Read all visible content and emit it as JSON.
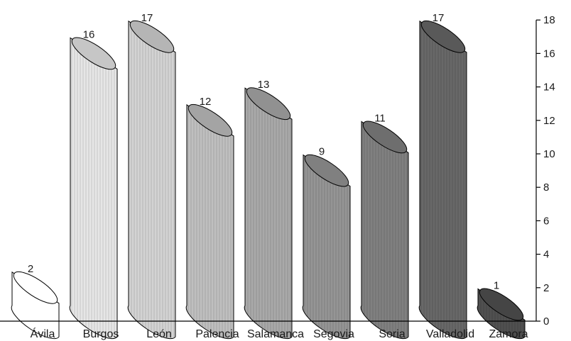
{
  "chart_data": {
    "type": "bar",
    "style": "3d-cylinder",
    "categories": [
      "Ávila",
      "Burgos",
      "León",
      "Palencia",
      "Salamanca",
      "Segovia",
      "Soria",
      "Valladolid",
      "Zamora"
    ],
    "values": [
      2,
      16,
      17,
      12,
      13,
      9,
      11,
      17,
      1
    ],
    "colors": [
      "#ffffff",
      "#e6e6e6",
      "#d3d3d3",
      "#bfbfbf",
      "#a9a9a9",
      "#959595",
      "#808080",
      "#686868",
      "#505050"
    ],
    "ylim": [
      0,
      18
    ],
    "yticks": [
      0,
      2,
      4,
      6,
      8,
      10,
      12,
      14,
      16,
      18
    ],
    "y_axis_side": "right",
    "grid": false,
    "legend": "none",
    "title": "",
    "xlabel": "",
    "ylabel": ""
  }
}
